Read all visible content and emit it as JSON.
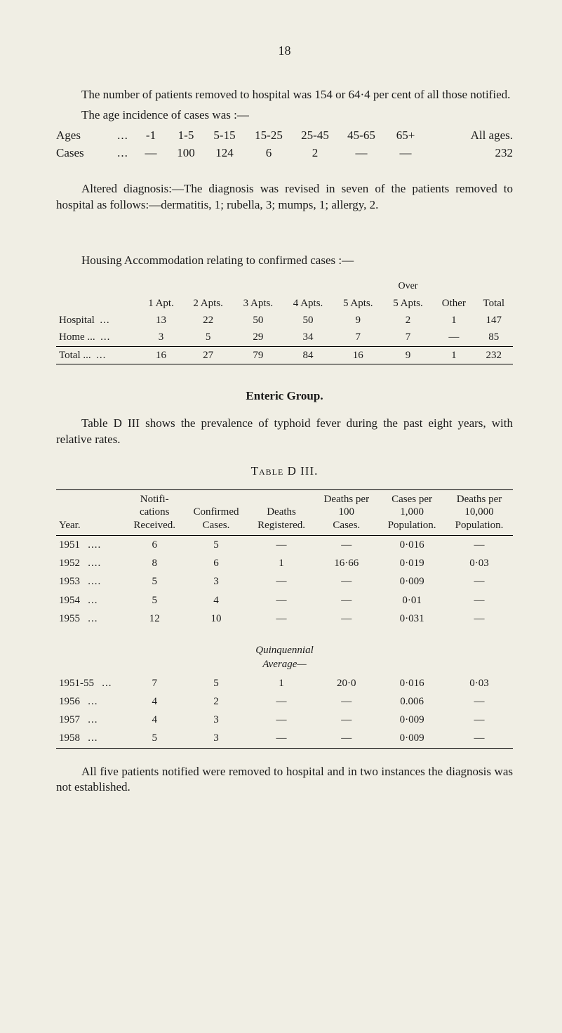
{
  "page_number": "18",
  "intro": {
    "p1": "The number of patients removed to hospital was 154 or 64·4 per cent of all those notified.",
    "p2": "The age incidence of cases was :—"
  },
  "age_table": {
    "row_labels": [
      "Ages",
      "Cases"
    ],
    "dots": "...",
    "headers": [
      "-1",
      "1-5",
      "5-15",
      "15-25",
      "25-45",
      "45-65",
      "65+",
      "All ages."
    ],
    "cases": [
      "—",
      "100",
      "124",
      "6",
      "2",
      "—",
      "—",
      "232"
    ]
  },
  "altered": "Altered diagnosis:—The diagnosis was revised in seven of the patients removed to hospital as follows:—dermatitis, 1; rubella, 3; mumps, 1; allergy, 2.",
  "housing": {
    "title": "Housing Accommodation relating to confirmed cases :—",
    "over_label": "Over",
    "headers": [
      "1 Apt.",
      "2 Apts.",
      "3 Apts.",
      "4 Apts.",
      "5 Apts.",
      "5 Apts.",
      "Other",
      "Total"
    ],
    "rows": [
      {
        "label": "Hospital",
        "dots": "...",
        "vals": [
          "13",
          "22",
          "50",
          "50",
          "9",
          "2",
          "1",
          "147"
        ]
      },
      {
        "label": "Home ...",
        "dots": "...",
        "vals": [
          "3",
          "5",
          "29",
          "34",
          "7",
          "7",
          "—",
          "85"
        ]
      }
    ],
    "total": {
      "label": "Total ...",
      "dots": "...",
      "vals": [
        "16",
        "27",
        "79",
        "84",
        "16",
        "9",
        "1",
        "232"
      ]
    }
  },
  "enteric": {
    "heading": "Enteric Group.",
    "para": "Table D III shows the prevalence of typhoid fever during the past eight years, with relative rates.",
    "table_title": "Table D III."
  },
  "table3": {
    "col_headers": {
      "year": "Year.",
      "notif": "Notifi-\ncations\nReceived.",
      "conf": "Confirmed\nCases.",
      "deaths": "Deaths\nRegistered.",
      "dp100": "Deaths per\n100\nCases.",
      "cp1000": "Cases per\n1,000\nPopulation.",
      "dp10000": "Deaths per\n10,000\nPopulation."
    },
    "rows": [
      {
        "year": "1951",
        "dots": "....",
        "notif": "6",
        "conf": "5",
        "deaths": "—",
        "dp100": "—",
        "cp1000": "0·016",
        "dp10000": "—"
      },
      {
        "year": "1952",
        "dots": "....",
        "notif": "8",
        "conf": "6",
        "deaths": "1",
        "dp100": "16·66",
        "cp1000": "0·019",
        "dp10000": "0·03"
      },
      {
        "year": "1953",
        "dots": "....",
        "notif": "5",
        "conf": "3",
        "deaths": "—",
        "dp100": "—",
        "cp1000": "0·009",
        "dp10000": "—"
      },
      {
        "year": "1954",
        "dots": "...",
        "notif": "5",
        "conf": "4",
        "deaths": "—",
        "dp100": "—",
        "cp1000": "0·01",
        "dp10000": "—"
      },
      {
        "year": "1955",
        "dots": "...",
        "notif": "12",
        "conf": "10",
        "deaths": "—",
        "dp100": "—",
        "cp1000": "0·031",
        "dp10000": "—"
      }
    ],
    "quin_label": "Quinquennial\nAverage—",
    "rows2": [
      {
        "year": "1951-55",
        "dots": "...",
        "notif": "7",
        "conf": "5",
        "deaths": "1",
        "dp100": "20·0",
        "cp1000": "0·016",
        "dp10000": "0·03"
      },
      {
        "year": "1956",
        "dots": "...",
        "notif": "4",
        "conf": "2",
        "deaths": "—",
        "dp100": "—",
        "cp1000": "0.006",
        "dp10000": "—"
      },
      {
        "year": "1957",
        "dots": "...",
        "notif": "4",
        "conf": "3",
        "deaths": "—",
        "dp100": "—",
        "cp1000": "0·009",
        "dp10000": "—"
      },
      {
        "year": "1958",
        "dots": "...",
        "notif": "5",
        "conf": "3",
        "deaths": "—",
        "dp100": "—",
        "cp1000": "0·009",
        "dp10000": "—"
      }
    ]
  },
  "footer": "All five patients notified were removed to hospital and in two instances the diagnosis was not established.",
  "colors": {
    "paper": "#f0eee4",
    "text": "#1a1a1a",
    "rule": "#000000"
  }
}
